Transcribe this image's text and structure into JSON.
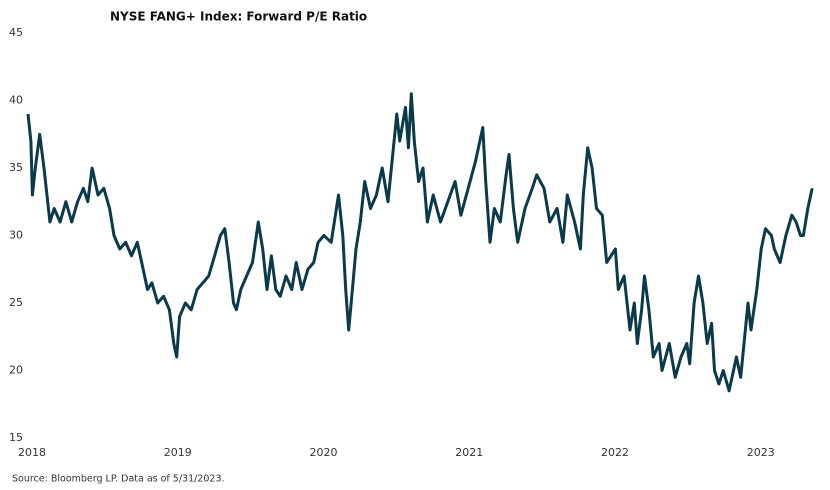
{
  "chart_data": {
    "type": "line",
    "title": "NYSE FANG+ Index: Forward P/E Ratio",
    "source": "Source: Bloomberg LP. Data as of 5/31/2023.",
    "x": [
      2018.0,
      2018.02,
      2018.03,
      2018.05,
      2018.08,
      2018.11,
      2018.15,
      2018.18,
      2018.22,
      2018.26,
      2018.3,
      2018.34,
      2018.38,
      2018.41,
      2018.44,
      2018.48,
      2018.52,
      2018.56,
      2018.59,
      2018.63,
      2018.67,
      2018.71,
      2018.75,
      2018.78,
      2018.82,
      2018.85,
      2018.89,
      2018.93,
      2018.97,
      2019.0,
      2019.02,
      2019.04,
      2019.08,
      2019.12,
      2019.16,
      2019.2,
      2019.24,
      2019.28,
      2019.32,
      2019.35,
      2019.38,
      2019.41,
      2019.43,
      2019.46,
      2019.5,
      2019.54,
      2019.58,
      2019.61,
      2019.64,
      2019.67,
      2019.7,
      2019.73,
      2019.77,
      2019.81,
      2019.84,
      2019.88,
      2019.92,
      2019.96,
      2019.99,
      2020.03,
      2020.08,
      2020.13,
      2020.16,
      2020.18,
      2020.2,
      2020.23,
      2020.25,
      2020.28,
      2020.31,
      2020.35,
      2020.39,
      2020.43,
      2020.47,
      2020.53,
      2020.55,
      2020.59,
      2020.61,
      2020.63,
      2020.65,
      2020.68,
      2020.71,
      2020.74,
      2020.78,
      2020.83,
      2020.88,
      2020.93,
      2020.97,
      2021.02,
      2021.07,
      2021.12,
      2021.14,
      2021.17,
      2021.2,
      2021.24,
      2021.28,
      2021.3,
      2021.33,
      2021.36,
      2021.41,
      2021.46,
      2021.49,
      2021.54,
      2021.58,
      2021.63,
      2021.67,
      2021.7,
      2021.75,
      2021.79,
      2021.81,
      2021.84,
      2021.87,
      2021.9,
      2021.94,
      2021.97,
      2022.0,
      2022.03,
      2022.05,
      2022.09,
      2022.13,
      2022.16,
      2022.18,
      2022.21,
      2022.23,
      2022.26,
      2022.29,
      2022.33,
      2022.35,
      2022.4,
      2022.44,
      2022.48,
      2022.52,
      2022.54,
      2022.57,
      2022.6,
      2022.63,
      2022.66,
      2022.69,
      2022.71,
      2022.74,
      2022.77,
      2022.81,
      2022.84,
      2022.86,
      2022.89,
      2022.94,
      2022.96,
      2023.0,
      2023.03,
      2023.06,
      2023.1,
      2023.12,
      2023.16,
      2023.2,
      2023.24,
      2023.27,
      2023.3,
      2023.32,
      2023.35,
      2023.38
    ],
    "series": [
      {
        "name": "Forward P/E",
        "color": "#0b3a4a",
        "values": [
          39,
          37,
          33,
          35,
          37.5,
          35,
          31,
          32,
          31,
          32.5,
          31,
          32.5,
          33.5,
          32.5,
          35,
          33,
          33.5,
          32,
          30,
          29,
          29.5,
          28.5,
          29.5,
          28,
          26,
          26.5,
          25,
          25.5,
          24.5,
          22,
          21,
          24,
          25,
          24.5,
          26,
          26.5,
          27,
          28.5,
          30,
          30.5,
          28,
          25,
          24.5,
          26,
          27,
          28,
          31,
          29,
          26,
          28.5,
          26,
          25.5,
          27,
          26,
          28,
          26,
          27.5,
          28,
          29.5,
          30,
          29.5,
          33,
          30,
          26,
          23,
          26.5,
          29,
          31,
          34,
          32,
          33,
          35,
          32.5,
          39,
          37,
          39.5,
          36.5,
          40.5,
          37,
          34,
          35,
          31,
          33,
          31,
          32.5,
          34,
          31.5,
          33.5,
          35.5,
          38,
          34,
          29.5,
          32,
          31,
          34.5,
          36,
          32,
          29.5,
          32,
          33.5,
          34.5,
          33.5,
          31,
          32,
          29.5,
          33,
          31,
          29,
          33,
          36.5,
          35,
          32,
          31.5,
          28,
          28.5,
          29,
          26,
          27,
          23,
          25,
          22,
          24.5,
          27,
          24.5,
          21,
          22,
          20,
          22,
          19.5,
          21,
          22,
          20.5,
          25,
          27,
          25,
          22,
          23.5,
          20,
          19,
          20,
          18.5,
          20,
          21,
          19.5,
          25,
          23,
          26,
          29,
          30.5,
          30,
          29,
          28,
          30,
          31.5,
          31,
          30,
          30,
          32,
          33.5
        ]
      }
    ],
    "xlim": [
      2018,
      2023.42
    ],
    "xticks": [
      2018,
      2019,
      2020,
      2021,
      2022,
      2023
    ],
    "ylim": [
      15,
      45
    ],
    "yticks": [
      15,
      20,
      25,
      30,
      35,
      40,
      45
    ],
    "grid": false
  }
}
